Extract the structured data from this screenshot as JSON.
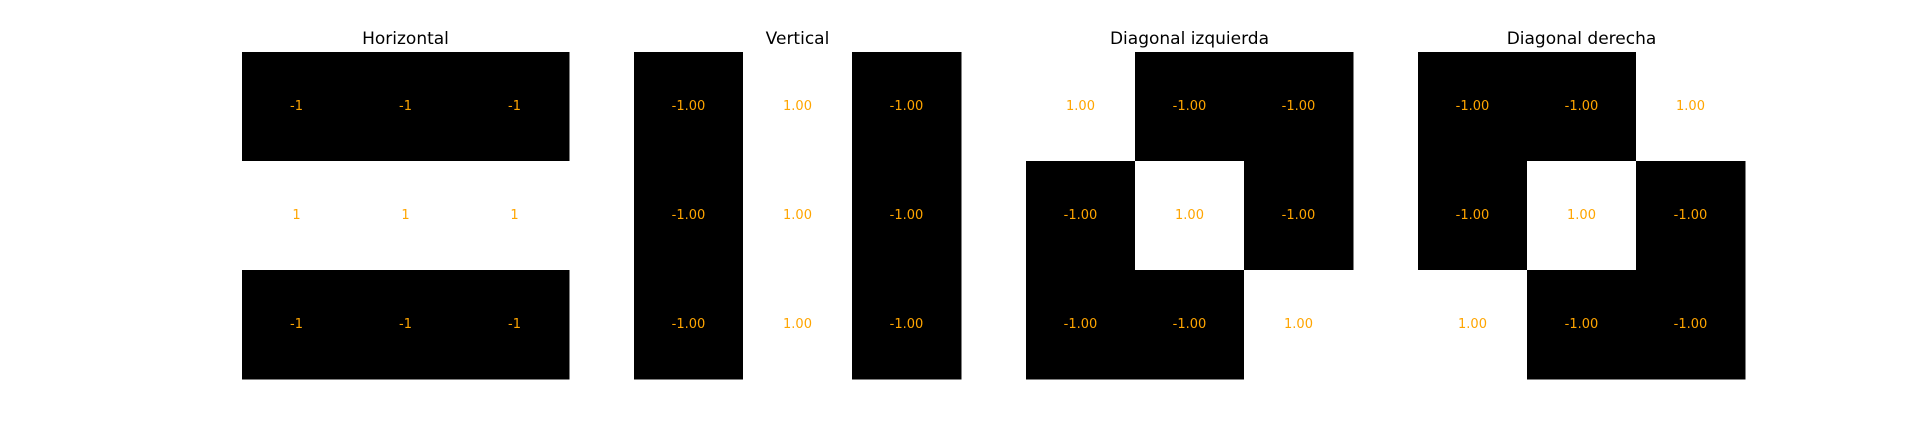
{
  "colors": {
    "negative_cell": "#000000",
    "positive_cell": "#ffffff",
    "annotation_text": "#ffa500",
    "title_text": "#000000"
  },
  "chart_data": [
    {
      "type": "heatmap",
      "title": "Horizontal",
      "rows": 3,
      "cols": 3,
      "values": [
        [
          -1,
          -1,
          -1
        ],
        [
          1,
          1,
          1
        ],
        [
          -1,
          -1,
          -1
        ]
      ],
      "labels": [
        [
          "-1",
          "-1",
          "-1"
        ],
        [
          "1",
          "1",
          "1"
        ],
        [
          "-1",
          "-1",
          "-1"
        ]
      ],
      "colormap": "gray",
      "value_range": [
        -1,
        1
      ],
      "axes": "off",
      "grid": false
    },
    {
      "type": "heatmap",
      "title": "Vertical",
      "rows": 3,
      "cols": 3,
      "values": [
        [
          -1,
          1,
          -1
        ],
        [
          -1,
          1,
          -1
        ],
        [
          -1,
          1,
          -1
        ]
      ],
      "labels": [
        [
          "-1.00",
          "1.00",
          "-1.00"
        ],
        [
          "-1.00",
          "1.00",
          "-1.00"
        ],
        [
          "-1.00",
          "1.00",
          "-1.00"
        ]
      ],
      "colormap": "gray",
      "value_range": [
        -1,
        1
      ],
      "axes": "off",
      "grid": false
    },
    {
      "type": "heatmap",
      "title": "Diagonal izquierda",
      "rows": 3,
      "cols": 3,
      "values": [
        [
          1,
          -1,
          -1
        ],
        [
          -1,
          1,
          -1
        ],
        [
          -1,
          -1,
          1
        ]
      ],
      "labels": [
        [
          "1.00",
          "-1.00",
          "-1.00"
        ],
        [
          "-1.00",
          "1.00",
          "-1.00"
        ],
        [
          "-1.00",
          "-1.00",
          "1.00"
        ]
      ],
      "colormap": "gray",
      "value_range": [
        -1,
        1
      ],
      "axes": "off",
      "grid": false
    },
    {
      "type": "heatmap",
      "title": "Diagonal derecha",
      "rows": 3,
      "cols": 3,
      "values": [
        [
          -1,
          -1,
          1
        ],
        [
          -1,
          1,
          -1
        ],
        [
          1,
          -1,
          -1
        ]
      ],
      "labels": [
        [
          "-1.00",
          "-1.00",
          "1.00"
        ],
        [
          "-1.00",
          "1.00",
          "-1.00"
        ],
        [
          "1.00",
          "-1.00",
          "-1.00"
        ]
      ],
      "colormap": "gray",
      "value_range": [
        -1,
        1
      ],
      "axes": "off",
      "grid": false
    }
  ]
}
